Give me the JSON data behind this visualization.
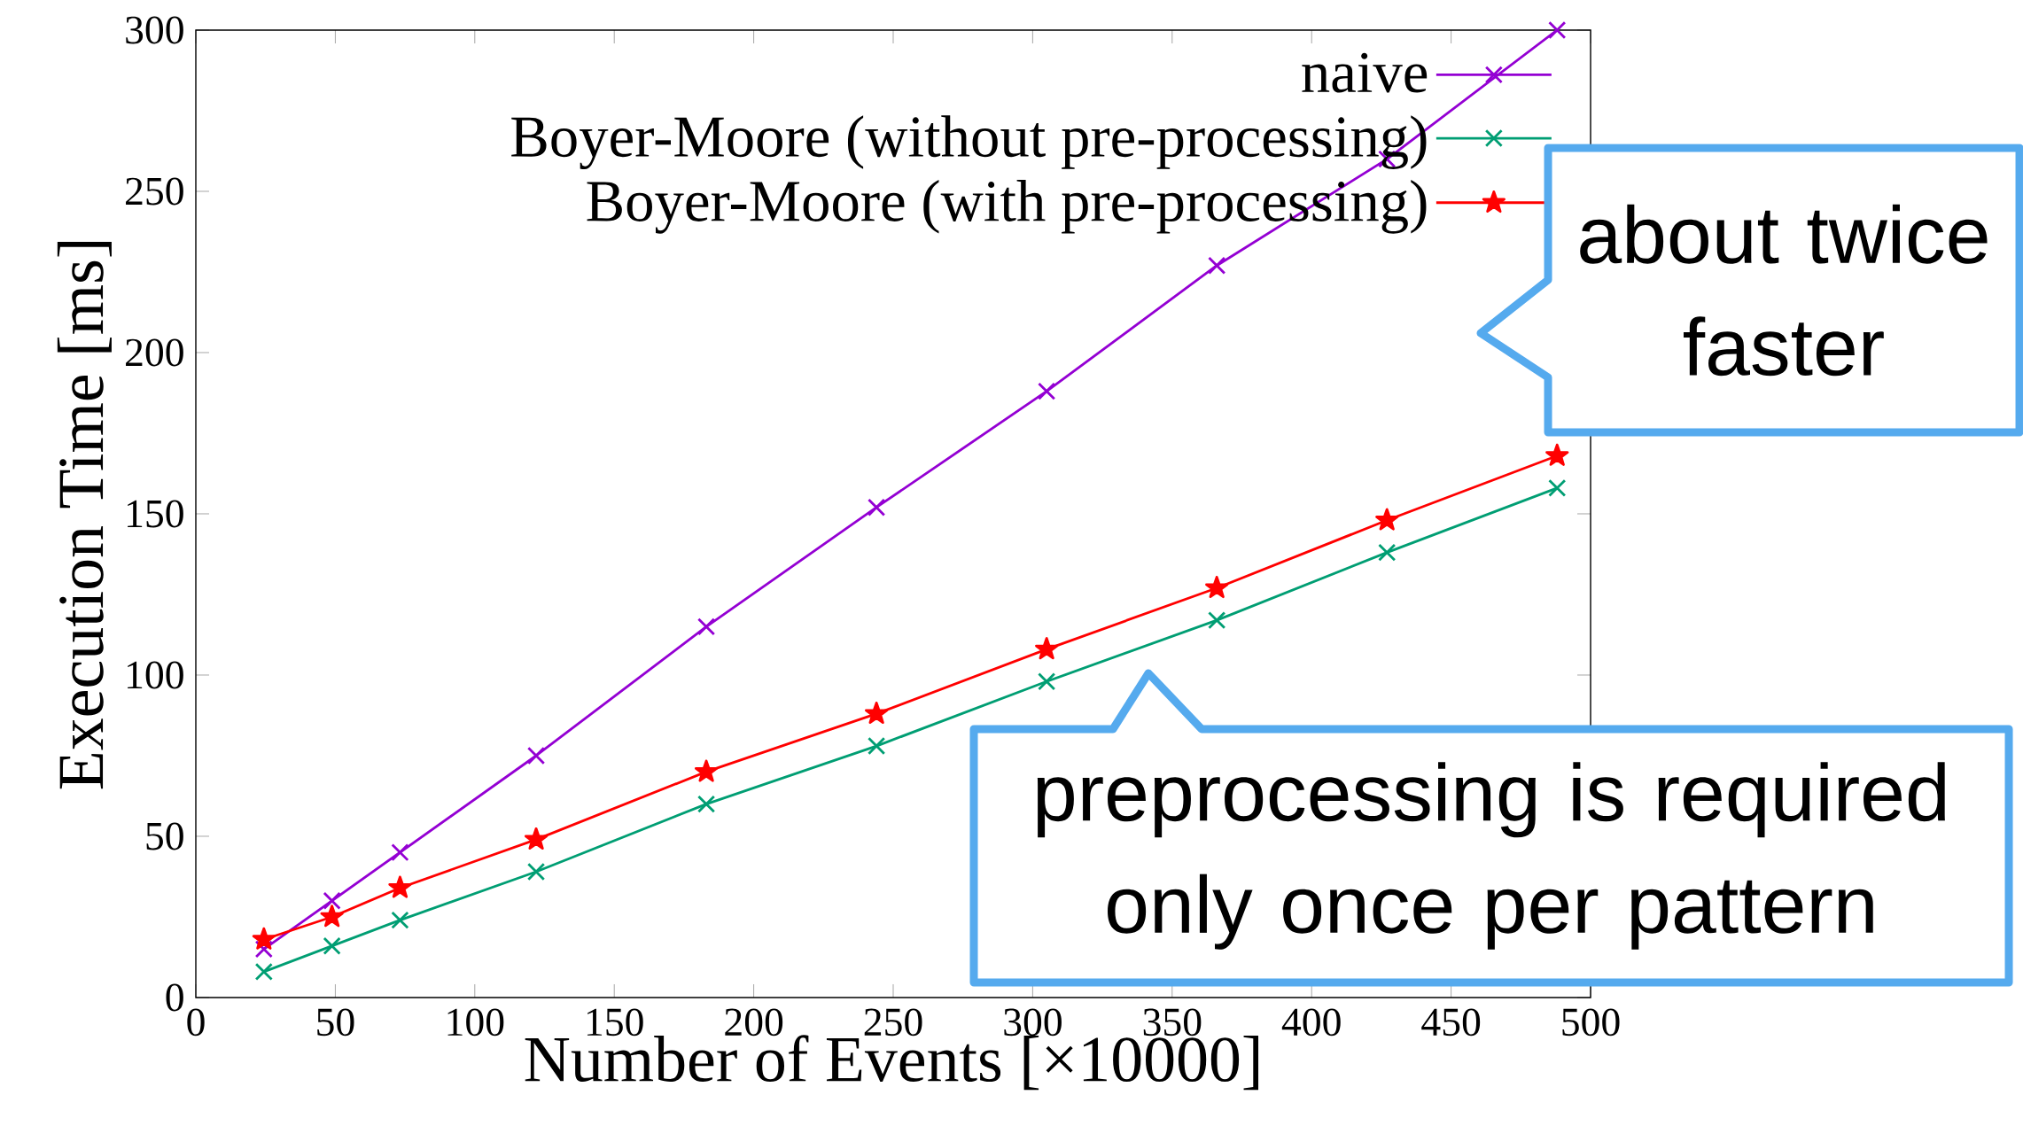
{
  "chart_data": {
    "type": "line",
    "xlabel": "Number of Events [×10000]",
    "ylabel": "Execution Time [ms]",
    "x": [
      24.4,
      48.8,
      73.2,
      122,
      183,
      244,
      305,
      366,
      427,
      488
    ],
    "series": [
      {
        "name": "naive",
        "color": "#9400d3",
        "marker": "cross",
        "values": [
          15,
          30,
          45,
          75,
          115,
          152,
          188,
          227,
          260,
          300
        ]
      },
      {
        "name": "Boyer-Moore (without pre-processing)",
        "color": "#009e73",
        "marker": "cross",
        "values": [
          8,
          16,
          24,
          39,
          60,
          78,
          98,
          117,
          138,
          158
        ]
      },
      {
        "name": "Boyer-Moore (with pre-processing)",
        "color": "#ff0000",
        "marker": "star",
        "values": [
          18,
          25,
          34,
          49,
          70,
          88,
          108,
          127,
          148,
          168
        ]
      }
    ],
    "xlim": [
      0,
      500
    ],
    "xticks": [
      0,
      50,
      100,
      150,
      200,
      250,
      300,
      350,
      400,
      450,
      500
    ],
    "ylim": [
      0,
      300
    ],
    "yticks": [
      0,
      50,
      100,
      150,
      200,
      250,
      300
    ],
    "legend": "top right",
    "grid": false,
    "annotations": [
      "about twice faster",
      "preprocessing is required only once per pattern"
    ]
  }
}
